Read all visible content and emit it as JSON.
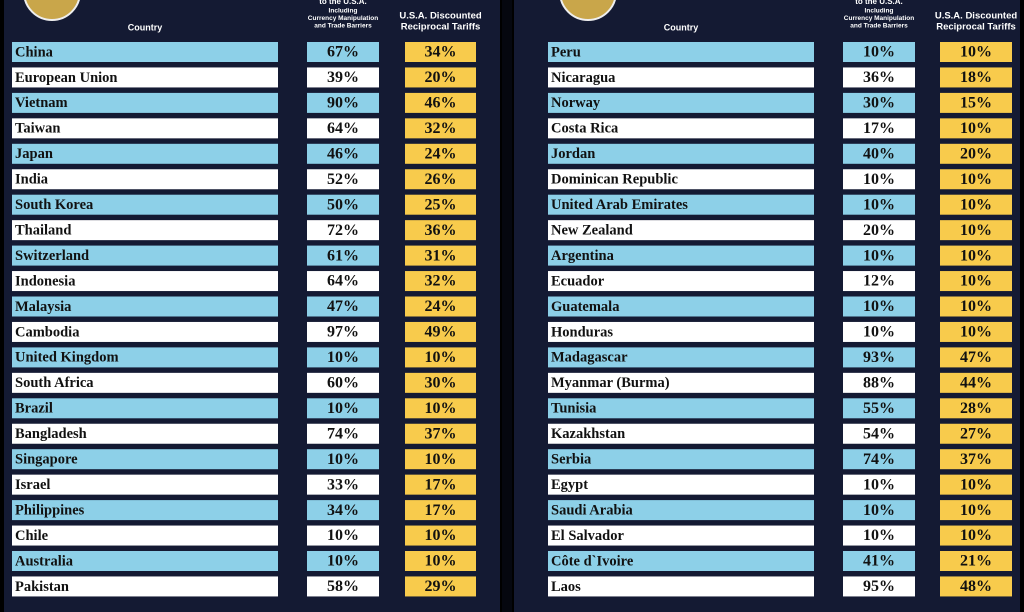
{
  "panels": [
    {
      "header": {
        "country": "Country",
        "charged_partial": "to the U.S.A.",
        "charged_lines": [
          "Including",
          "Currency Manipulation",
          "and Trade Barriers"
        ],
        "reciprocal_lines": [
          "U.S.A. Discounted",
          "Reciprocal Tariffs"
        ]
      },
      "rows": [
        [
          "China",
          "67%",
          "34%"
        ],
        [
          "European Union",
          "39%",
          "20%"
        ],
        [
          "Vietnam",
          "90%",
          "46%"
        ],
        [
          "Taiwan",
          "64%",
          "32%"
        ],
        [
          "Japan",
          "46%",
          "24%"
        ],
        [
          "India",
          "52%",
          "26%"
        ],
        [
          "South Korea",
          "50%",
          "25%"
        ],
        [
          "Thailand",
          "72%",
          "36%"
        ],
        [
          "Switzerland",
          "61%",
          "31%"
        ],
        [
          "Indonesia",
          "64%",
          "32%"
        ],
        [
          "Malaysia",
          "47%",
          "24%"
        ],
        [
          "Cambodia",
          "97%",
          "49%"
        ],
        [
          "United Kingdom",
          "10%",
          "10%"
        ],
        [
          "South Africa",
          "60%",
          "30%"
        ],
        [
          "Brazil",
          "10%",
          "10%"
        ],
        [
          "Bangladesh",
          "74%",
          "37%"
        ],
        [
          "Singapore",
          "10%",
          "10%"
        ],
        [
          "Israel",
          "33%",
          "17%"
        ],
        [
          "Philippines",
          "34%",
          "17%"
        ],
        [
          "Chile",
          "10%",
          "10%"
        ],
        [
          "Australia",
          "10%",
          "10%"
        ],
        [
          "Pakistan",
          "58%",
          "29%"
        ]
      ]
    },
    {
      "header": {
        "country": "Country",
        "charged_partial": "to the U.S.A.",
        "charged_lines": [
          "Including",
          "Currency Manipulation",
          "and Trade Barriers"
        ],
        "reciprocal_lines": [
          "U.S.A. Discounted",
          "Reciprocal Tariffs"
        ]
      },
      "rows": [
        [
          "Peru",
          "10%",
          "10%"
        ],
        [
          "Nicaragua",
          "36%",
          "18%"
        ],
        [
          "Norway",
          "30%",
          "15%"
        ],
        [
          "Costa Rica",
          "17%",
          "10%"
        ],
        [
          "Jordan",
          "40%",
          "20%"
        ],
        [
          "Dominican Republic",
          "10%",
          "10%"
        ],
        [
          "United Arab Emirates",
          "10%",
          "10%"
        ],
        [
          "New Zealand",
          "20%",
          "10%"
        ],
        [
          "Argentina",
          "10%",
          "10%"
        ],
        [
          "Ecuador",
          "12%",
          "10%"
        ],
        [
          "Guatemala",
          "10%",
          "10%"
        ],
        [
          "Honduras",
          "10%",
          "10%"
        ],
        [
          "Madagascar",
          "93%",
          "47%"
        ],
        [
          "Myanmar (Burma)",
          "88%",
          "44%"
        ],
        [
          "Tunisia",
          "55%",
          "28%"
        ],
        [
          "Kazakhstan",
          "54%",
          "27%"
        ],
        [
          "Serbia",
          "74%",
          "37%"
        ],
        [
          "Egypt",
          "10%",
          "10%"
        ],
        [
          "Saudi Arabia",
          "10%",
          "10%"
        ],
        [
          "El Salvador",
          "10%",
          "10%"
        ],
        [
          "Côte d`Ivoire",
          "41%",
          "21%"
        ],
        [
          "Laos",
          "95%",
          "48%"
        ]
      ]
    }
  ]
}
